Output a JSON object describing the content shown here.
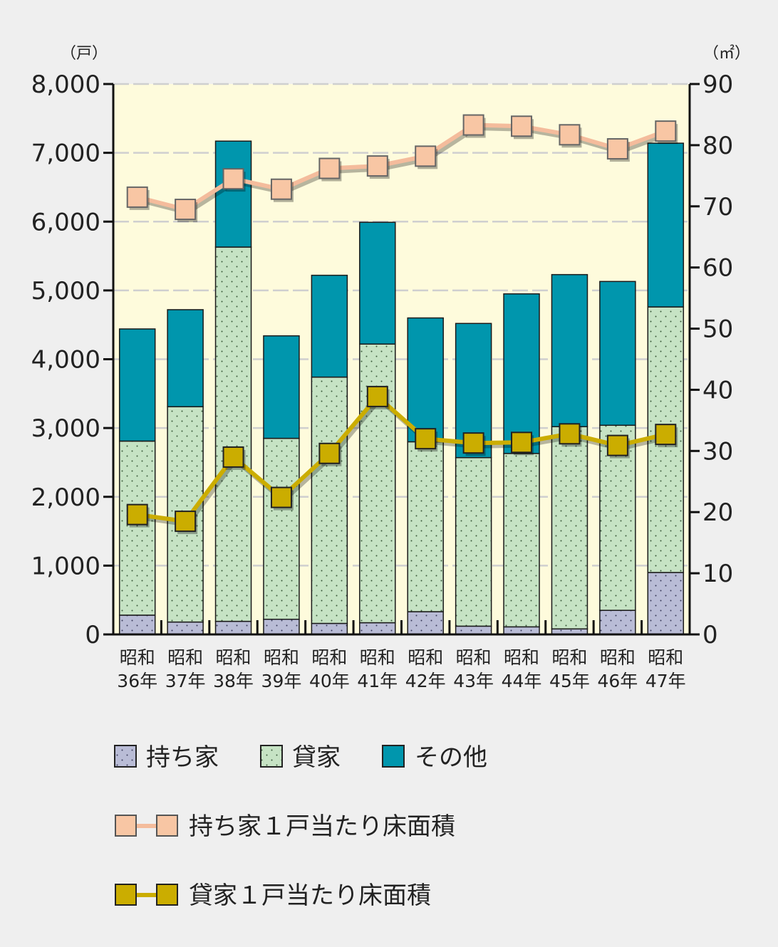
{
  "chart_data": {
    "type": "bar",
    "stacked": true,
    "categories": [
      [
        "昭和",
        "36年"
      ],
      [
        "昭和",
        "37年"
      ],
      [
        "昭和",
        "38年"
      ],
      [
        "昭和",
        "39年"
      ],
      [
        "昭和",
        "40年"
      ],
      [
        "昭和",
        "41年"
      ],
      [
        "昭和",
        "42年"
      ],
      [
        "昭和",
        "43年"
      ],
      [
        "昭和",
        "44年"
      ],
      [
        "昭和",
        "45年"
      ],
      [
        "昭和",
        "46年"
      ],
      [
        "昭和",
        "47年"
      ]
    ],
    "y_left": {
      "unit": "（戸）",
      "range": [
        0,
        8000
      ],
      "ticks": [
        0,
        1000,
        2000,
        3000,
        4000,
        5000,
        6000,
        7000,
        8000
      ],
      "tick_labels": [
        "0",
        "1,000",
        "2,000",
        "3,000",
        "4,000",
        "5,000",
        "6,000",
        "7,000",
        "8,000"
      ]
    },
    "y_right": {
      "unit": "（㎡）",
      "range": [
        0,
        90
      ],
      "ticks": [
        0,
        10,
        20,
        30,
        40,
        50,
        60,
        70,
        80,
        90
      ],
      "tick_labels": [
        "0",
        "10",
        "20",
        "30",
        "40",
        "50",
        "60",
        "70",
        "80",
        "90"
      ]
    },
    "bar_series": [
      {
        "name": "持ち家",
        "color": "#b9bcd6",
        "values": [
          280,
          180,
          190,
          220,
          160,
          170,
          330,
          120,
          110,
          80,
          350,
          900
        ]
      },
      {
        "name": "貸家",
        "color": "#c6e3c4",
        "values": [
          2530,
          3130,
          5440,
          2630,
          3580,
          4050,
          2470,
          2450,
          2520,
          2940,
          2690,
          3860
        ]
      },
      {
        "name": "その他",
        "color": "#0096ad",
        "values": [
          1630,
          1410,
          1540,
          1490,
          1480,
          1770,
          1800,
          1950,
          2320,
          2210,
          2090,
          2380
        ]
      }
    ],
    "line_series": [
      {
        "name": "持ち家１戸当たり床面積",
        "axis": "right",
        "color": "#f8c6a4",
        "line_color": "#f4bc9c",
        "values": [
          71.5,
          69.5,
          74.5,
          72.8,
          76.2,
          76.6,
          78.2,
          83.3,
          83.1,
          81.7,
          79.4,
          82.3
        ]
      },
      {
        "name": "貸家１戸当たり床面積",
        "axis": "right",
        "color": "#cbad00",
        "line_color": "#cbad00",
        "values": [
          19.6,
          18.5,
          29.0,
          22.4,
          29.6,
          38.9,
          32.0,
          31.3,
          31.4,
          32.8,
          30.9,
          32.7
        ]
      }
    ],
    "grid": true,
    "plot_background": "#fefbdc",
    "legend_position": "bottom"
  }
}
